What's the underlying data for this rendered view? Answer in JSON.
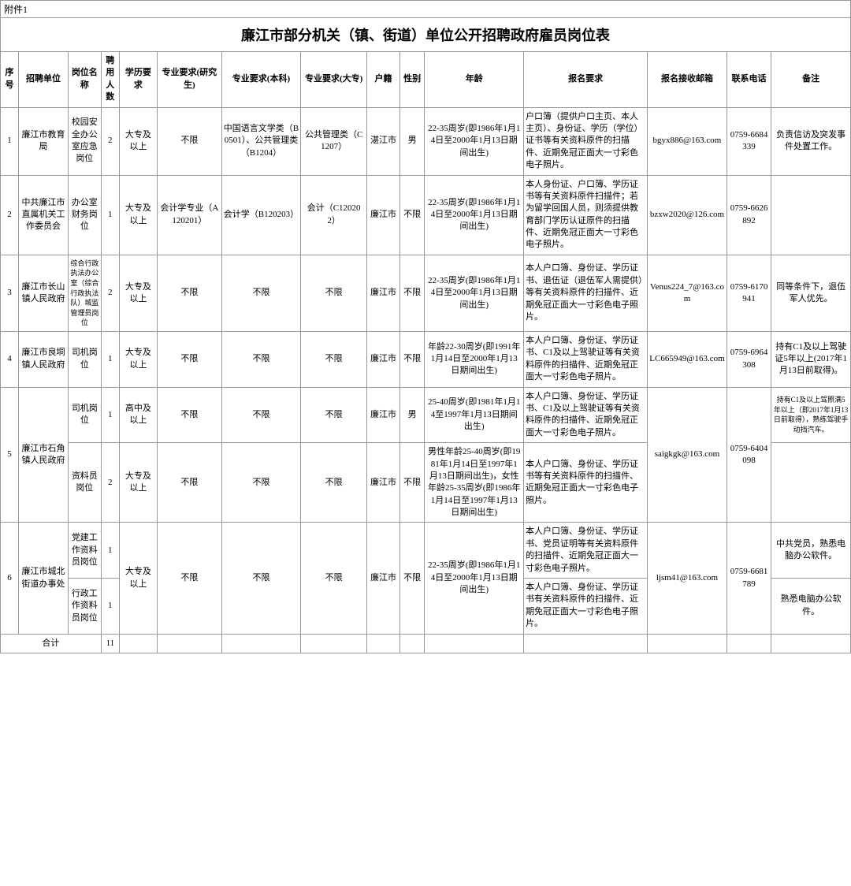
{
  "attachment": "附件1",
  "title": "廉江市部分机关（镇、街道）单位公开招聘政府雇员岗位表",
  "headers": {
    "seq": "序号",
    "unit": "招聘单位",
    "post": "岗位名称",
    "count": "聘用人数",
    "edu": "学历要求",
    "major_grad": "专业要求(研究生)",
    "major_bach": "专业要求(本科)",
    "major_coll": "专业要求(大专)",
    "hukou": "户籍",
    "gender": "性别",
    "age": "年龄",
    "apply_req": "报名要求",
    "email": "报名接收邮箱",
    "phone": "联系电话",
    "remark": "备注"
  },
  "rows": {
    "r1": {
      "seq": "1",
      "unit": "廉江市教育局",
      "post": "校园安全办公室应急岗位",
      "count": "2",
      "edu": "大专及以上",
      "major_grad": "不限",
      "major_bach": "中国语言文学类（B0501）、公共管理类（B1204）",
      "major_coll": "公共管理类（C1207）",
      "hukou": "湛江市",
      "gender": "男",
      "age": "22-35周岁(即1986年1月14日至2000年1月13日期间出生)",
      "apply_req": "户口簿（提供户口主页、本人主页）、身份证、学历（学位）证书等有关资料原件的扫描件、近期免冠正面大一寸彩色电子照片。",
      "email": "bgyx886@163.com",
      "phone": "0759-6684339",
      "remark": "负责信访及突发事件处置工作。"
    },
    "r2": {
      "seq": "2",
      "unit": "中共廉江市直属机关工作委员会",
      "post": "办公室财务岗位",
      "count": "1",
      "edu": "大专及以上",
      "major_grad": "会计学专业（A120201）",
      "major_bach": "会计学（B120203）",
      "major_coll": "会计（C120202）",
      "hukou": "廉江市",
      "gender": "不限",
      "age": "22-35周岁(即1986年1月14日至2000年1月13日期间出生)",
      "apply_req": "本人身份证、户口簿、学历证书等有关资料原件扫描件；若为留学回国人员，则须提供教育部门学历认证原件的扫描件、近期免冠正面大一寸彩色电子照片。",
      "email": "bzxw2020@126.com",
      "phone": "0759-6626892",
      "remark": ""
    },
    "r3": {
      "seq": "3",
      "unit": "廉江市长山镇人民政府",
      "post": "综合行政执法办公室（综合行政执法队）城监管理员岗位",
      "count": "2",
      "edu": "大专及以上",
      "major_grad": "不限",
      "major_bach": "不限",
      "major_coll": "不限",
      "hukou": "廉江市",
      "gender": "不限",
      "age": "22-35周岁(即1986年1月14日至2000年1月13日期间出生)",
      "apply_req": "本人户口簿、身份证、学历证书、退伍证（退伍军人需提供）等有关资料原件的扫描件、近期免冠正面大一寸彩色电子照片。",
      "email": "Venus224_7@163.com",
      "phone": "0759-6170941",
      "remark": "同等条件下，退伍军人优先。"
    },
    "r4": {
      "seq": "4",
      "unit": "廉江市良垌镇人民政府",
      "post": "司机岗位",
      "count": "1",
      "edu": "大专及以上",
      "major_grad": "不限",
      "major_bach": "不限",
      "major_coll": "不限",
      "hukou": "廉江市",
      "gender": "不限",
      "age": "年龄22-30周岁(即1991年1月14日至2000年1月13日期间出生)",
      "apply_req": "本人户口簿、身份证、学历证书、C1及以上驾驶证等有关资料原件的扫描件、近期免冠正面大一寸彩色电子照片。",
      "email": "LC665949@163.com",
      "phone": "0759-6964308",
      "remark": "持有C1及以上驾驶证5年以上(2017年1月13日前取得)。"
    },
    "r5a": {
      "seq": "5",
      "unit": "廉江市石角镇人民政府",
      "post": "司机岗位",
      "count": "1",
      "edu": "高中及以上",
      "major_grad": "不限",
      "major_bach": "不限",
      "major_coll": "不限",
      "hukou": "廉江市",
      "gender": "男",
      "age": "25-40周岁(即1981年1月14至1997年1月13日期间出生)",
      "apply_req": "本人户口簿、身份证、学历证书、C1及以上驾驶证等有关资料原件的扫描件、近期免冠正面大一寸彩色电子照片。",
      "email": "saigkgk@163.com",
      "phone": "0759-6404098",
      "remark": "持有C1及以上驾照满5年以上（即2017年1月13日前取得），熟练驾驶手动挡汽车。"
    },
    "r5b": {
      "post": "资料员岗位",
      "count": "2",
      "edu": "大专及以上",
      "major_grad": "不限",
      "major_bach": "不限",
      "major_coll": "不限",
      "hukou": "廉江市",
      "gender": "不限",
      "age": "男性年龄25-40周岁(即1981年1月14日至1997年1月13日期间出生)，女性年龄25-35周岁(即1986年1月14日至1997年1月13日期间出生)",
      "apply_req": "本人户口簿、身份证、学历证书等有关资料原件的扫描件、近期免冠正面大一寸彩色电子照片。",
      "remark": ""
    },
    "r6a": {
      "seq": "6",
      "unit": "廉江市城北街道办事处",
      "post": "党建工作资料员岗位",
      "count": "1",
      "edu": "大专及以上",
      "major_grad": "不限",
      "major_bach": "不限",
      "major_coll": "不限",
      "hukou": "廉江市",
      "gender": "不限",
      "age": "22-35周岁(即1986年1月14日至2000年1月13日期间出生)",
      "apply_req": "本人户口簿、身份证、学历证书、党员证明等有关资料原件的扫描件、近期免冠正面大一寸彩色电子照片。",
      "email": "ljsm41@163.com",
      "phone": "0759-6681789",
      "remark": "中共党员，熟悉电脑办公软件。"
    },
    "r6b": {
      "post": "行政工作资料员岗位",
      "count": "1",
      "apply_req": "本人户口簿、身份证、学历证书有关资料原件的扫描件、近期免冠正面大一寸彩色电子照片。",
      "remark": "熟悉电脑办公软件。"
    }
  },
  "total": {
    "label": "合计",
    "count": "11"
  }
}
